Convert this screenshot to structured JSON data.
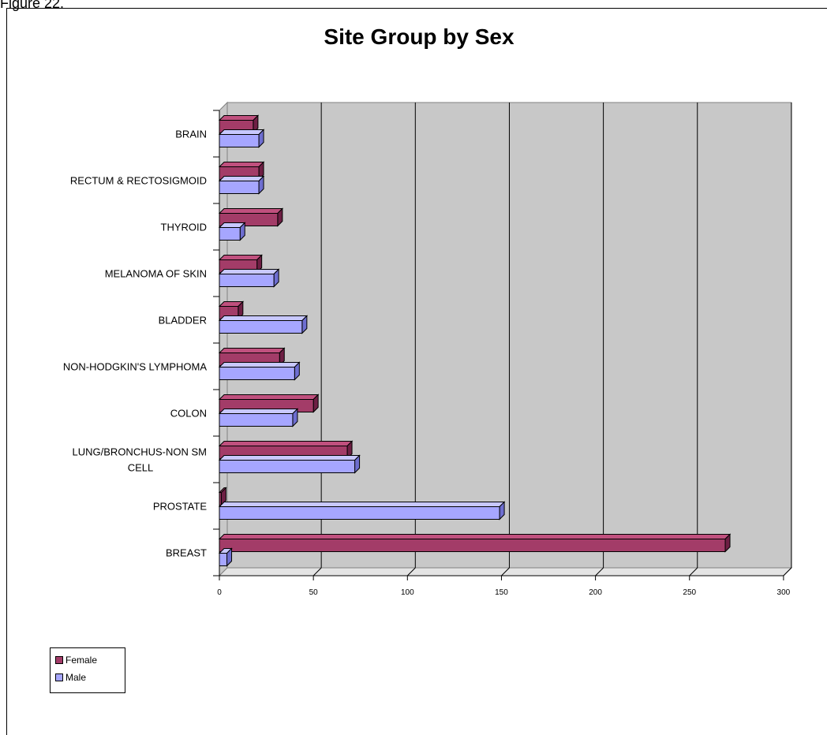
{
  "page": {
    "caption": "Figure 22."
  },
  "colors": {
    "female": "#A33C68",
    "female_top": "#C0507E",
    "female_side": "#6E1F44",
    "male": "#A6A6FF",
    "male_top": "#C8C8FF",
    "male_side": "#6E6ED0",
    "plot_bg": "#C8C8C8",
    "plot_side": "#E4E4E4"
  },
  "chart_data": {
    "type": "bar",
    "orientation": "horizontal",
    "title": "Site Group by Sex",
    "xlabel": "",
    "ylabel": "",
    "xlim": [
      0,
      300
    ],
    "xticks": [
      0,
      50,
      100,
      150,
      200,
      250,
      300
    ],
    "grid": true,
    "legend_position": "bottom-left",
    "categories": [
      "BRAIN",
      "RECTUM & RECTOSIGMOID",
      "THYROID",
      "MELANOMA OF SKIN",
      "BLADDER",
      "NON-HODGKIN'S LYMPHOMA",
      "COLON",
      "LUNG/BRONCHUS-NON SM CELL",
      "PROSTATE",
      "BREAST"
    ],
    "category_lines": [
      [
        "BRAIN"
      ],
      [
        "RECTUM & RECTOSIGMOID"
      ],
      [
        "THYROID"
      ],
      [
        "MELANOMA OF SKIN"
      ],
      [
        "BLADDER"
      ],
      [
        "NON-HODGKIN'S LYMPHOMA"
      ],
      [
        "COLON"
      ],
      [
        "LUNG/BRONCHUS-NON SM",
        "CELL"
      ],
      [
        "PROSTATE"
      ],
      [
        "BREAST"
      ]
    ],
    "series": [
      {
        "name": "Female",
        "values": [
          18,
          21,
          31,
          20,
          10,
          32,
          50,
          68,
          1,
          269
        ]
      },
      {
        "name": "Male",
        "values": [
          21,
          21,
          11,
          29,
          44,
          40,
          39,
          72,
          149,
          4
        ]
      }
    ]
  }
}
